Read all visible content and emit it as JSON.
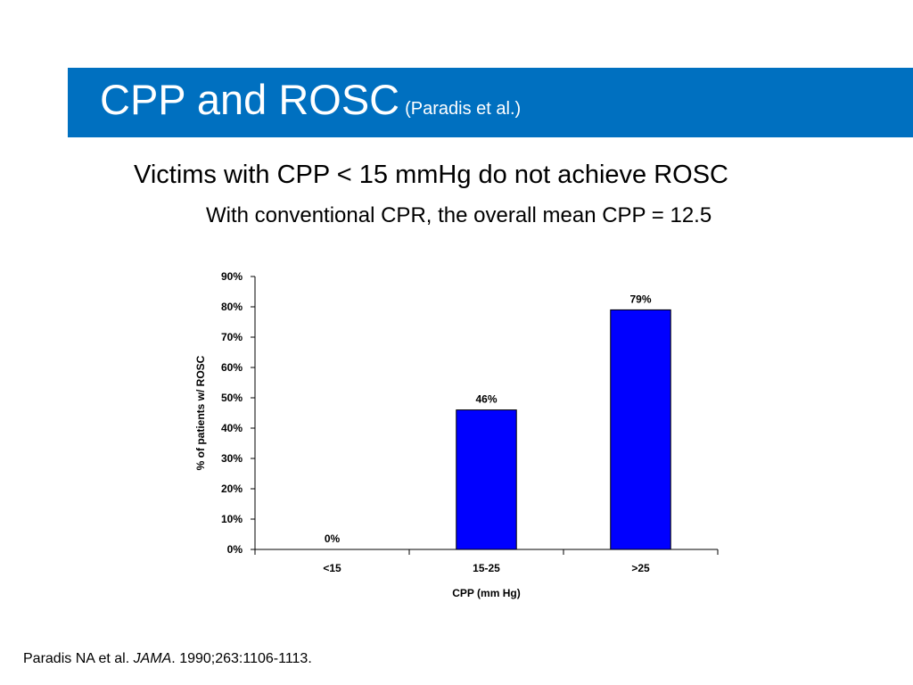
{
  "slide": {
    "title": "CPP and ROSC",
    "title_sub": "(Paradis et al.)",
    "bullet_1": "Victims with CPP < 15 mmHg do not achieve ROSC",
    "bullet_2": "With conventional CPR, the overall mean CPP = 12.5",
    "citation_author": "Paradis NA et al.",
    "citation_journal": "JAMA",
    "citation_rest": ". 1990;263:1106-1113."
  },
  "colors": {
    "title_band": "#0070c0",
    "bar_fill": "#0000ff",
    "bar_stroke": "#000000"
  },
  "chart_data": {
    "type": "bar",
    "categories": [
      "<15",
      "15-25",
      ">25"
    ],
    "values": [
      0,
      46,
      79
    ],
    "data_labels": [
      "0%",
      "46%",
      "79%"
    ],
    "xlabel": "CPP (mm Hg)",
    "ylabel": "% of patients w/ ROSC",
    "ylim": [
      0,
      90
    ],
    "yticks": [
      0,
      10,
      20,
      30,
      40,
      50,
      60,
      70,
      80,
      90
    ],
    "ytick_labels": [
      "0%",
      "10%",
      "20%",
      "30%",
      "40%",
      "50%",
      "60%",
      "70%",
      "80%",
      "90%"
    ],
    "grid": false,
    "legend": "none"
  }
}
